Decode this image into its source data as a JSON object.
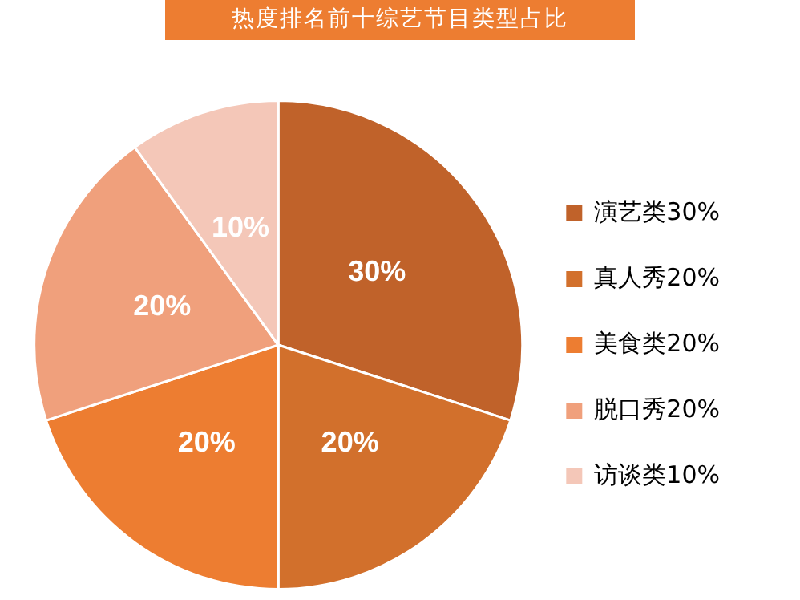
{
  "chart_data": {
    "type": "pie",
    "title": "热度排名前十综艺节目类型占比",
    "categories": [
      "演艺类",
      "真人秀",
      "美食类",
      "脱口秀",
      "访谈类"
    ],
    "values": [
      30,
      20,
      20,
      20,
      10
    ],
    "value_labels": [
      "30%",
      "20%",
      "20%",
      "20%",
      "10%"
    ],
    "colors": [
      "#c0622a",
      "#d2702c",
      "#ed7d31",
      "#f0a07c",
      "#f4c7b8"
    ],
    "legend": "right"
  }
}
